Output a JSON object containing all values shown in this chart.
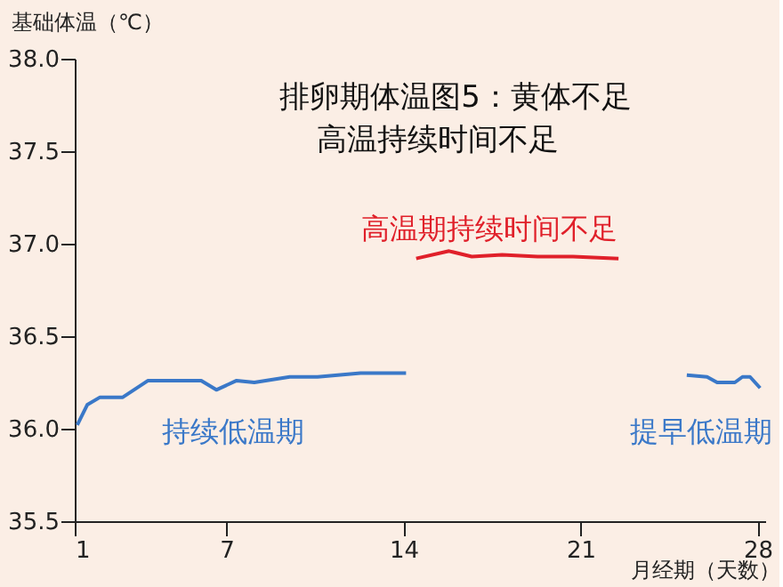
{
  "chart_data": {
    "type": "line",
    "xlabel": "月经期（天数）",
    "ylabel": "基础体温（℃）",
    "annotations": [
      "排卵期体温图5：黄体不足",
      "高温持续时间不足",
      "高温期持续时间不足",
      "持续低温期",
      "提早低温期"
    ],
    "xlim": [
      1,
      28.3
    ],
    "xticks": [
      1,
      7,
      14,
      21,
      28
    ],
    "ylim": [
      35.5,
      38.0
    ],
    "yticks": [
      {
        "value": 35.5,
        "label": "35.5"
      },
      {
        "value": 36.0,
        "label": "36.0"
      },
      {
        "value": 36.5,
        "label": "36.5"
      },
      {
        "value": 37.0,
        "label": "37.0"
      },
      {
        "value": 37.5,
        "label": "37.5"
      },
      {
        "value": 38.0,
        "label": "38.0"
      }
    ],
    "grid": false,
    "marker": "none",
    "line_style": "solid",
    "series": [
      {
        "color": "#3a78c8",
        "x": [
          1.1,
          1.5,
          2.0,
          2.9,
          3.9,
          6.0,
          6.6,
          7.4,
          8.1,
          9.5,
          10.6,
          12.3,
          14.1
        ],
        "values": [
          36.02,
          36.13,
          36.17,
          36.17,
          36.26,
          36.26,
          36.21,
          36.26,
          36.25,
          36.28,
          36.28,
          36.3,
          36.3
        ]
      },
      {
        "color": "#e0202a",
        "x": [
          14.5,
          15.8,
          16.7,
          17.9,
          19.3,
          20.7,
          22.5
        ],
        "values": [
          36.92,
          36.96,
          36.93,
          36.94,
          36.93,
          36.93,
          36.92
        ]
      },
      {
        "color": "#3a78c8",
        "x": [
          25.2,
          26.0,
          26.4,
          27.1,
          27.4,
          27.7,
          28.1
        ],
        "values": [
          36.29,
          36.28,
          36.25,
          36.25,
          36.28,
          36.28,
          36.22
        ]
      }
    ]
  }
}
